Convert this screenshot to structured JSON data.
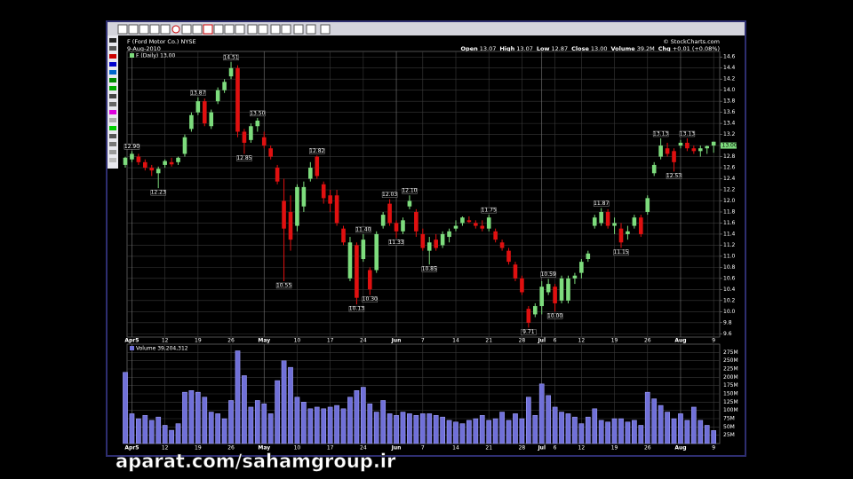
{
  "chart_data": {
    "type": "candlestick",
    "header": {
      "symbol": "F (Ford Motor Co.) NYSE",
      "date": "9-Aug-2010",
      "credit": "© StockCharts.com",
      "quote": [
        {
          "label": "Open",
          "value": "13.07"
        },
        {
          "label": "High",
          "value": "13.07"
        },
        {
          "label": "Low",
          "value": "12.87"
        },
        {
          "label": "Close",
          "value": "13.00"
        },
        {
          "label": "Volume",
          "value": "39.2M"
        },
        {
          "label": "Chg",
          "value": "+0.01 (+0.08%)"
        }
      ]
    },
    "legend": "F (Daily) 13.00",
    "watermark": "aparat.com/sahamgroup.ir",
    "up_color": "#7ddc7d",
    "down_color": "#e01010",
    "grid": true,
    "categories": [
      null,
      "Apr5",
      null,
      null,
      null,
      null,
      "12",
      null,
      null,
      null,
      null,
      "19",
      null,
      null,
      null,
      null,
      "26",
      null,
      null,
      null,
      null,
      "May",
      null,
      null,
      null,
      null,
      "10",
      null,
      null,
      null,
      null,
      "17",
      null,
      null,
      null,
      null,
      "24",
      null,
      null,
      null,
      null,
      "Jun",
      null,
      null,
      null,
      "7",
      null,
      null,
      null,
      null,
      "14",
      null,
      null,
      null,
      null,
      "21",
      null,
      null,
      null,
      null,
      "28",
      null,
      null,
      "Jul",
      null,
      "6",
      null,
      null,
      null,
      "12",
      null,
      null,
      null,
      null,
      "19",
      null,
      null,
      null,
      null,
      "26",
      null,
      null,
      null,
      null,
      "Aug",
      null,
      null,
      null,
      null,
      "9"
    ],
    "month_starts": [
      "May",
      "Jun",
      "Jul",
      "Aug"
    ],
    "open": [
      12.65,
      12.75,
      12.8,
      12.7,
      12.6,
      12.5,
      12.65,
      12.7,
      12.7,
      12.85,
      13.3,
      13.6,
      13.8,
      13.35,
      13.8,
      14.0,
      14.25,
      14.4,
      13.25,
      13.1,
      13.35,
      13.15,
      12.95,
      12.6,
      12.0,
      11.8,
      11.55,
      11.9,
      12.4,
      12.8,
      12.3,
      12.1,
      12.1,
      11.5,
      10.6,
      11.2,
      11.3,
      10.4,
      10.75,
      11.55,
      11.95,
      11.6,
      11.45,
      11.9,
      11.8,
      11.4,
      11.1,
      11.3,
      11.2,
      11.35,
      11.5,
      11.6,
      11.65,
      11.6,
      11.55,
      11.7,
      11.45,
      11.25,
      11.1,
      10.85,
      10.6,
      10.05,
      9.95,
      10.1,
      10.35,
      10.45,
      10.6,
      10.2,
      10.6,
      10.7,
      10.95,
      11.55,
      11.6,
      11.8,
      11.55,
      11.5,
      11.4,
      11.55,
      11.7,
      11.8,
      12.5,
      12.8,
      12.95,
      12.9,
      13.0,
      13.05,
      12.95,
      12.9,
      12.95,
      13.07
    ],
    "high": [
      12.8,
      12.9,
      12.85,
      12.75,
      12.65,
      12.62,
      12.75,
      12.78,
      12.8,
      13.2,
      13.6,
      13.87,
      13.85,
      13.65,
      14.05,
      14.2,
      14.51,
      14.45,
      13.3,
      13.4,
      13.5,
      13.25,
      13.0,
      12.65,
      12.4,
      12.1,
      12.3,
      12.35,
      12.7,
      12.82,
      12.35,
      12.2,
      12.2,
      11.55,
      11.35,
      11.25,
      11.4,
      10.8,
      11.45,
      11.8,
      12.03,
      11.65,
      11.7,
      12.1,
      11.85,
      11.5,
      11.35,
      11.4,
      11.45,
      11.5,
      11.65,
      11.72,
      11.72,
      11.65,
      11.65,
      11.75,
      11.5,
      11.3,
      11.15,
      10.9,
      10.65,
      10.1,
      10.15,
      10.55,
      10.59,
      10.5,
      10.65,
      10.65,
      10.7,
      10.95,
      11.1,
      11.75,
      11.87,
      11.85,
      11.7,
      11.6,
      11.55,
      11.75,
      11.75,
      12.1,
      12.7,
      13.13,
      13.05,
      12.95,
      13.1,
      13.13,
      13.0,
      13.0,
      13.0,
      13.07
    ],
    "low": [
      12.6,
      12.7,
      12.65,
      12.55,
      12.45,
      12.23,
      12.6,
      12.62,
      12.65,
      12.8,
      13.25,
      13.55,
      13.35,
      13.3,
      13.75,
      13.95,
      14.2,
      13.15,
      12.85,
      13.05,
      13.25,
      12.95,
      12.75,
      12.3,
      10.55,
      11.1,
      11.45,
      11.8,
      12.35,
      12.4,
      11.95,
      11.8,
      11.55,
      11.2,
      10.55,
      10.13,
      10.9,
      10.3,
      10.7,
      11.5,
      11.55,
      11.33,
      11.4,
      11.85,
      11.35,
      11.1,
      10.85,
      11.1,
      11.15,
      11.25,
      11.45,
      11.55,
      11.6,
      11.5,
      11.45,
      11.45,
      11.25,
      11.1,
      10.85,
      10.55,
      10.3,
      9.71,
      9.9,
      9.95,
      10.3,
      10.0,
      10.15,
      10.15,
      10.5,
      10.6,
      10.9,
      11.5,
      11.55,
      11.5,
      11.4,
      11.15,
      11.3,
      11.5,
      11.35,
      11.75,
      12.45,
      12.75,
      12.8,
      12.53,
      12.95,
      12.9,
      12.85,
      12.8,
      12.85,
      12.87
    ],
    "close": [
      12.78,
      12.85,
      12.7,
      12.6,
      12.55,
      12.58,
      12.72,
      12.66,
      12.78,
      13.15,
      13.55,
      13.8,
      13.4,
      13.6,
      14.0,
      14.15,
      14.4,
      13.25,
      13.05,
      13.35,
      13.45,
      13.0,
      12.8,
      12.35,
      11.5,
      11.3,
      12.25,
      12.25,
      12.6,
      12.45,
      12.05,
      11.95,
      11.6,
      11.25,
      11.25,
      10.25,
      10.95,
      10.75,
      11.4,
      11.75,
      11.6,
      11.45,
      11.65,
      12.0,
      11.45,
      11.15,
      11.25,
      11.15,
      11.4,
      11.45,
      11.55,
      11.7,
      11.62,
      11.55,
      11.5,
      11.5,
      11.3,
      11.15,
      10.9,
      10.6,
      10.35,
      9.8,
      10.1,
      10.45,
      10.5,
      10.15,
      10.2,
      10.6,
      10.65,
      10.9,
      11.05,
      11.7,
      11.8,
      11.55,
      11.6,
      11.25,
      11.45,
      11.7,
      11.4,
      12.05,
      12.65,
      13.0,
      12.85,
      12.7,
      13.05,
      12.95,
      12.9,
      12.95,
      12.99,
      13.0
    ],
    "annotations": [
      {
        "value": 12.9,
        "label": "12.90"
      },
      {
        "value": 12.23,
        "label": "12.23"
      },
      {
        "value": 13.87,
        "label": "13.87"
      },
      {
        "value": 14.51,
        "label": "14.51"
      },
      {
        "value": 12.85,
        "label": "12.85"
      },
      {
        "value": 13.5,
        "label": "13.50"
      },
      {
        "value": 10.55,
        "label": "10.55"
      },
      {
        "value": 12.82,
        "label": "12.82"
      },
      {
        "value": 10.13,
        "label": "10.13"
      },
      {
        "value": 11.4,
        "label": "11.40"
      },
      {
        "value": 10.3,
        "label": "10.30"
      },
      {
        "value": 12.03,
        "label": "12.03"
      },
      {
        "value": 11.33,
        "label": "11.33"
      },
      {
        "value": 12.1,
        "label": "12.10"
      },
      {
        "value": 10.85,
        "label": "10.85"
      },
      {
        "value": 11.75,
        "label": "11.75"
      },
      {
        "value": 9.71,
        "label": "9.71"
      },
      {
        "value": 10.59,
        "label": "10.59"
      },
      {
        "value": 10.0,
        "label": "10.00"
      },
      {
        "value": 11.87,
        "label": "11.87"
      },
      {
        "value": 11.15,
        "label": "11.15"
      },
      {
        "value": 13.13,
        "label": "13.13"
      },
      {
        "value": 12.53,
        "label": "12.53"
      },
      {
        "value": 13.13,
        "label": "13.13"
      }
    ],
    "last_price": {
      "value": 13.0,
      "label": "13.00"
    },
    "ylim": [
      9.54,
      14.7
    ],
    "yticks": [
      9.6,
      9.8,
      {
        "value": 10,
        "label": "10.0"
      },
      10.2,
      10.4,
      10.6,
      10.8,
      {
        "value": 11,
        "label": "11.0"
      },
      11.2,
      11.4,
      11.6,
      11.8,
      {
        "value": 12,
        "label": "12.0"
      },
      12.2,
      12.4,
      12.6,
      12.8,
      {
        "value": 13,
        "label": "13.0"
      },
      13.2,
      13.4,
      13.6,
      13.8,
      {
        "value": 14,
        "label": "14.0"
      },
      14.2,
      14.4,
      14.6
    ],
    "volume": {
      "title": "Volume 39,204,312",
      "color": "#7070d8",
      "ylim": [
        0,
        300
      ],
      "yticks": [
        {
          "value": 25,
          "label": "25M"
        },
        {
          "value": 50,
          "label": "50M"
        },
        {
          "value": 75,
          "label": "75M"
        },
        {
          "value": 100,
          "label": "100M"
        },
        {
          "value": 125,
          "label": "125M"
        },
        {
          "value": 150,
          "label": "150M"
        },
        {
          "value": 175,
          "label": "175M"
        },
        {
          "value": 200,
          "label": "200M"
        },
        {
          "value": 225,
          "label": "225M"
        },
        {
          "value": 250,
          "label": "250M"
        },
        {
          "value": 275,
          "label": "275M"
        }
      ],
      "values": [
        215,
        90,
        75,
        85,
        70,
        80,
        55,
        40,
        60,
        155,
        160,
        155,
        140,
        95,
        90,
        75,
        130,
        280,
        205,
        110,
        130,
        120,
        90,
        190,
        250,
        230,
        140,
        125,
        105,
        110,
        105,
        110,
        115,
        105,
        140,
        160,
        170,
        120,
        95,
        130,
        90,
        85,
        95,
        90,
        85,
        90,
        90,
        85,
        80,
        70,
        65,
        60,
        70,
        75,
        85,
        70,
        75,
        95,
        70,
        90,
        75,
        140,
        85,
        180,
        145,
        110,
        95,
        90,
        80,
        60,
        80,
        105,
        70,
        65,
        75,
        75,
        65,
        70,
        55,
        155,
        135,
        115,
        95,
        75,
        90,
        70,
        110,
        70,
        55,
        39.2
      ]
    }
  }
}
